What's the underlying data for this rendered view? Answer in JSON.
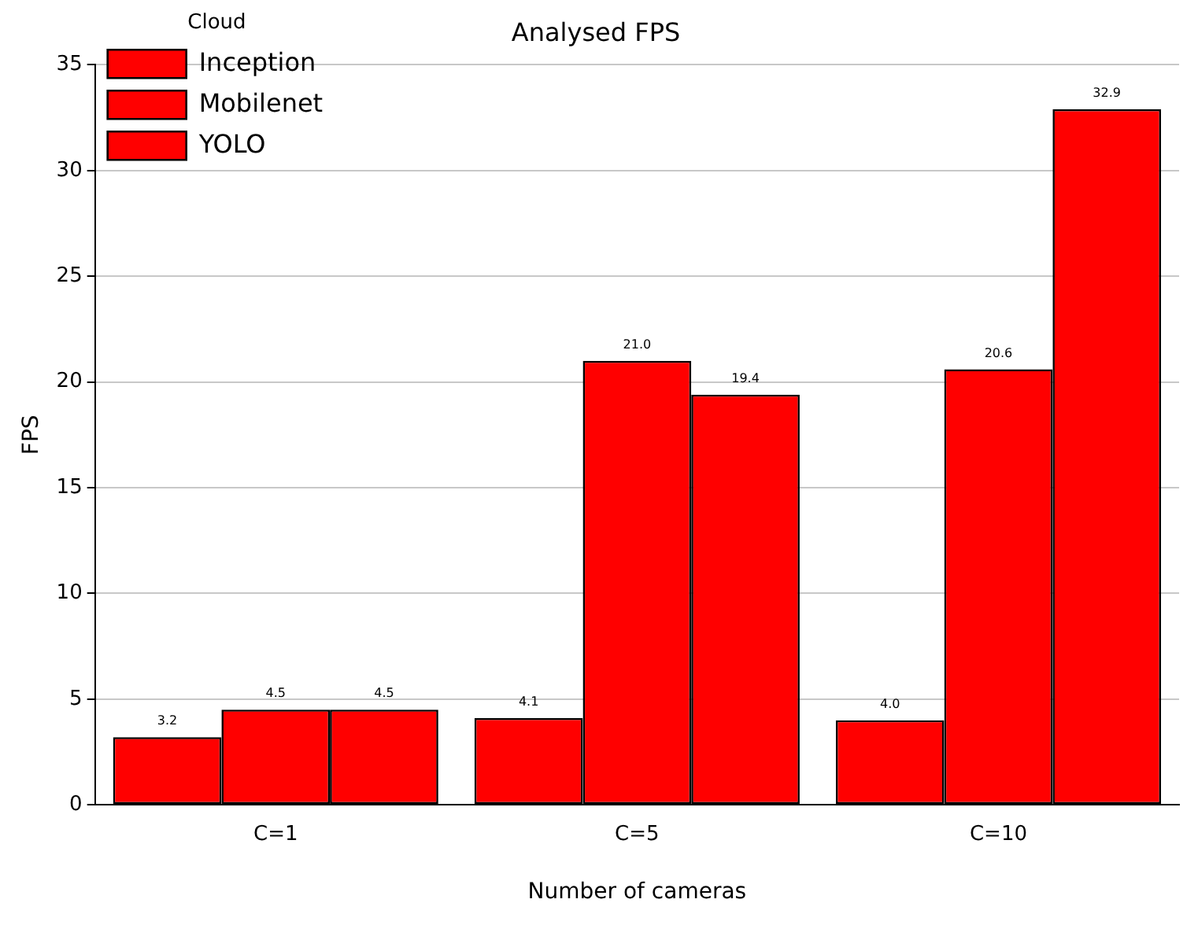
{
  "chart_data": {
    "type": "bar",
    "title": "Analysed FPS",
    "xlabel": "Number of cameras",
    "ylabel": "FPS",
    "legend_title": "Cloud",
    "categories": [
      "C=1",
      "C=5",
      "C=10"
    ],
    "series": [
      {
        "name": "Inception",
        "color": "#ff0000",
        "values": [
          3.2,
          4.1,
          4.0
        ],
        "value_labels": [
          "3.2",
          "4.1",
          "4.0"
        ]
      },
      {
        "name": "Mobilenet",
        "color": "#ff0000",
        "values": [
          4.5,
          21.0,
          20.6
        ],
        "value_labels": [
          "4.5",
          "21.0",
          "20.6"
        ]
      },
      {
        "name": "YOLO",
        "color": "#ff0000",
        "values": [
          4.5,
          19.4,
          32.9
        ],
        "value_labels": [
          "4.5",
          "19.4",
          "32.9"
        ]
      }
    ],
    "ylim": [
      0,
      35
    ],
    "yticks": [
      0,
      5,
      10,
      15,
      20,
      25,
      30,
      35
    ],
    "grid": "y",
    "legend": "top left"
  }
}
